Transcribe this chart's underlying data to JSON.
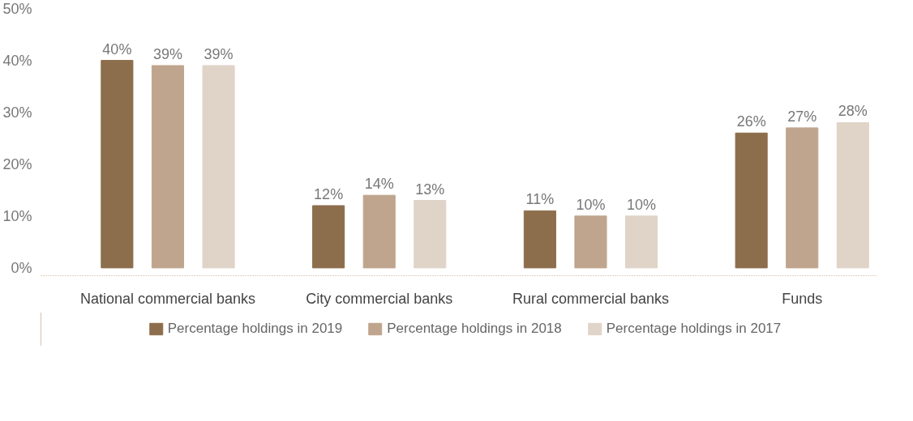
{
  "chart_data": {
    "type": "bar",
    "categories": [
      "National commercial banks",
      "City commercial banks",
      "Rural commercial banks",
      "Funds"
    ],
    "series": [
      {
        "name": "Percentage holdings in 2019",
        "color": "#8d6e4c",
        "values": [
          40,
          12,
          11,
          26
        ],
        "value_labels": [
          "40%",
          "12%",
          "11%",
          "26%"
        ]
      },
      {
        "name": "Percentage holdings in 2018",
        "color": "#bfa58d",
        "values": [
          39,
          14,
          10,
          27
        ],
        "value_labels": [
          "39%",
          "14%",
          "10%",
          "27%"
        ]
      },
      {
        "name": "Percentage holdings in 2017",
        "color": "#e0d3c8",
        "values": [
          39,
          13,
          10,
          28
        ],
        "value_labels": [
          "39%",
          "13%",
          "10%",
          "28%"
        ]
      }
    ],
    "ylim": [
      -1.5,
      50
    ],
    "yticks": [
      {
        "value": 0,
        "label": "0%"
      },
      {
        "value": 10,
        "label": "10%"
      },
      {
        "value": 20,
        "label": "20%"
      },
      {
        "value": 30,
        "label": "30%"
      },
      {
        "value": 40,
        "label": "40%"
      },
      {
        "value": 50,
        "label": "50%"
      }
    ],
    "grid": false,
    "legend": "bottom"
  }
}
